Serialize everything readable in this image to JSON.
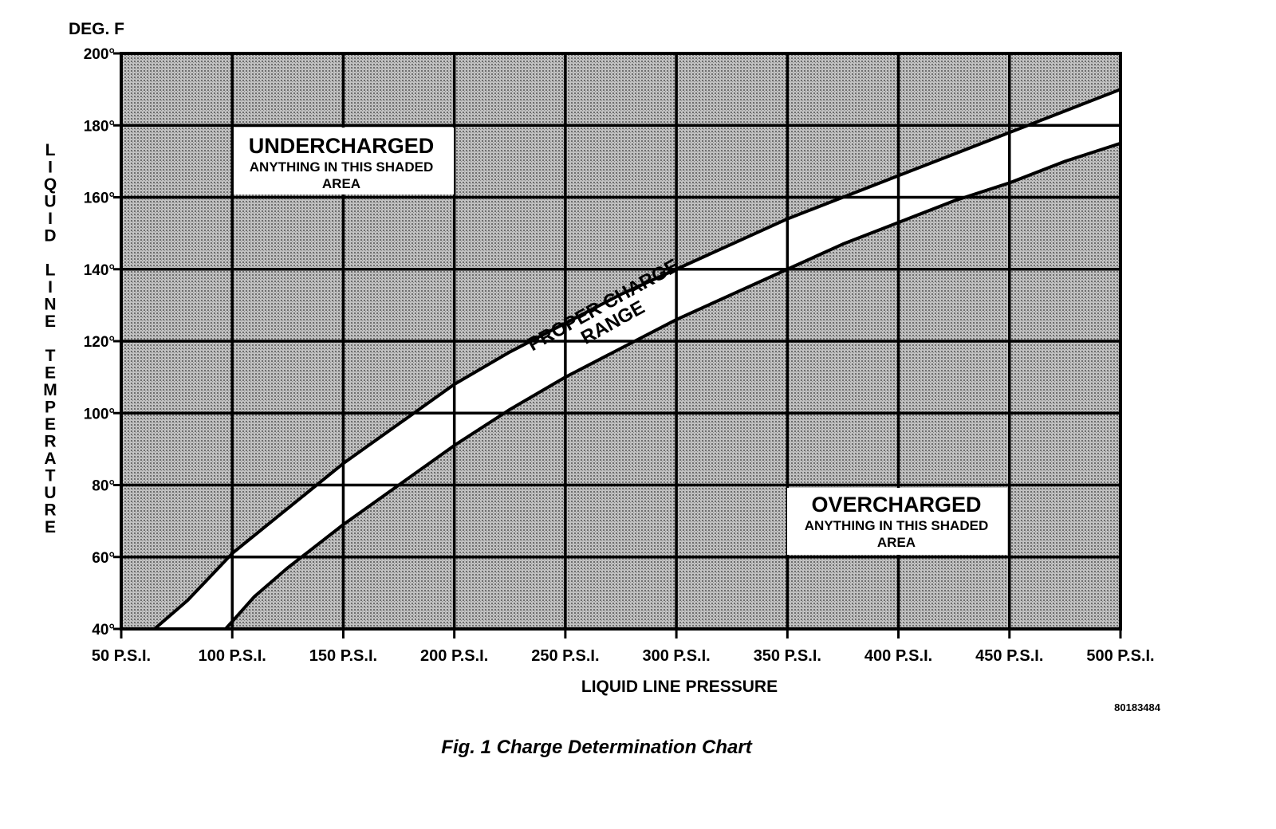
{
  "chart_data": {
    "type": "line",
    "title": "Fig. 1 Charge Determination Chart",
    "xlabel": "LIQUID LINE PRESSURE",
    "ylabel": "LIQUID LINE TEMPERATURE",
    "yunit": "DEG. F",
    "xlim": [
      50,
      500
    ],
    "ylim": [
      40,
      200
    ],
    "x_ticks": [
      50,
      100,
      150,
      200,
      250,
      300,
      350,
      400,
      450,
      500
    ],
    "x_tick_labels": [
      "50 P.S.I.",
      "100 P.S.I.",
      "150 P.S.I.",
      "200 P.S.I.",
      "250 P.S.I.",
      "300 P.S.I.",
      "350 P.S.I.",
      "400 P.S.I.",
      "450 P.S.I.",
      "500 P.S.I."
    ],
    "y_ticks": [
      40,
      60,
      80,
      100,
      120,
      140,
      160,
      180,
      200
    ],
    "y_tick_labels": [
      "40°",
      "60°",
      "80°",
      "100°",
      "120°",
      "140°",
      "160°",
      "180°",
      "200°"
    ],
    "grid": true,
    "series": [
      {
        "x": [
          65,
          80,
          100,
          120,
          150,
          175,
          200,
          225,
          250,
          275,
          300,
          325,
          350,
          375,
          400,
          425,
          450,
          475,
          500
        ],
        "y": [
          40,
          48,
          61,
          71,
          86,
          97,
          108,
          117,
          125,
          133,
          140,
          147,
          154,
          160,
          166,
          172,
          178,
          184,
          190
        ]
      },
      {
        "x": [
          97,
          110,
          125,
          150,
          175,
          200,
          225,
          250,
          275,
          300,
          325,
          350,
          375,
          400,
          425,
          450,
          475,
          500
        ],
        "y": [
          40,
          49,
          57,
          69,
          80,
          91,
          101,
          110,
          118,
          126,
          133,
          140,
          147,
          153,
          159,
          164,
          170,
          175
        ]
      }
    ],
    "regions": {
      "undercharged": {
        "title": "UNDERCHARGED",
        "text_line1": "ANYTHING IN THIS SHADED",
        "text_line2": "AREA"
      },
      "overcharged": {
        "title": "OVERCHARGED",
        "text_line1": "ANYTHING IN THIS SHADED",
        "text_line2": "AREA"
      },
      "proper": {
        "line1": "PROPER CHARGE",
        "line2": "RANGE"
      }
    },
    "reference_code": "80183484",
    "colors": {
      "shaded": "#a6a6a6",
      "band": "#ffffff",
      "ink": "#000000"
    }
  }
}
